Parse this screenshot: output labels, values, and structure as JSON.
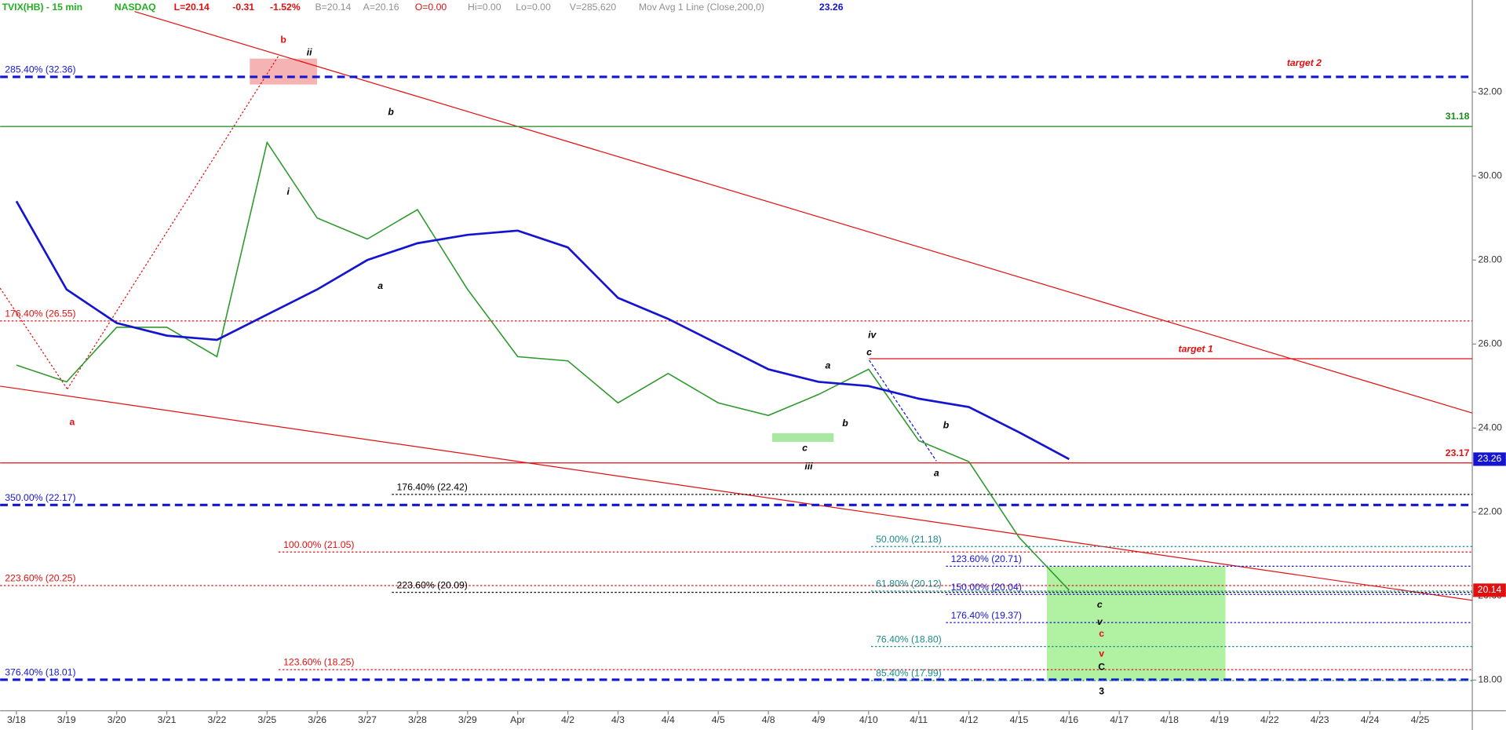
{
  "chart_data": {
    "type": "line",
    "header": [
      {
        "text": "TVIX(HB) - 15 min",
        "color": "#22b022"
      },
      {
        "text": "NASDAQ",
        "color": "#22b022"
      },
      {
        "text": "L=20.14",
        "color": "#e01010"
      },
      {
        "text": "-0.31",
        "color": "#e01010"
      },
      {
        "text": "-1.52%",
        "color": "#e01010"
      },
      {
        "text": "B=20.14",
        "color": "#909090"
      },
      {
        "text": "A=20.16",
        "color": "#909090"
      },
      {
        "text": "O=0.00",
        "color": "#e01010"
      },
      {
        "text": "Hi=0.00",
        "color": "#909090"
      },
      {
        "text": "Lo=0.00",
        "color": "#909090"
      },
      {
        "text": "V=285,620",
        "color": "#909090"
      },
      {
        "text": "Mov Avg 1 Line (Close,200,0)",
        "color": "#909090"
      },
      {
        "text": "23.26",
        "color": "#1515d0"
      }
    ],
    "categories": [
      "3/18",
      "3/19",
      "3/20",
      "3/21",
      "3/22",
      "3/25",
      "3/26",
      "3/27",
      "3/28",
      "3/29",
      "Apr",
      "4/2",
      "4/3",
      "4/4",
      "4/5",
      "4/8",
      "4/9",
      "4/10",
      "4/11",
      "4/12",
      "4/15",
      "4/16",
      "4/17",
      "4/18",
      "4/19",
      "4/22",
      "4/23",
      "4/24",
      "4/25"
    ],
    "series": [
      {
        "name": "TVIX",
        "color": "#2e9a2e",
        "values": [
          25.5,
          25.1,
          26.4,
          26.4,
          25.7,
          30.8,
          29.0,
          28.5,
          29.2,
          27.3,
          25.7,
          25.6,
          24.6,
          25.3,
          24.6,
          24.3,
          24.8,
          25.4,
          23.7,
          23.2,
          21.4,
          20.14,
          null,
          null,
          null,
          null,
          null,
          null,
          null
        ]
      },
      {
        "name": "Mov Avg",
        "color": "#1515d0",
        "values": [
          29.4,
          27.3,
          26.5,
          26.2,
          26.1,
          26.7,
          27.3,
          28.0,
          28.4,
          28.6,
          28.7,
          28.3,
          27.1,
          26.6,
          26.0,
          25.4,
          25.1,
          25.0,
          24.7,
          24.5,
          23.9,
          23.26,
          null,
          null,
          null,
          null,
          null,
          null,
          null
        ]
      }
    ],
    "ylim": [
      17.27,
      34.19
    ],
    "yticks": [
      {
        "value": 18,
        "label": "18.00"
      },
      {
        "value": 20,
        "label": "20.00"
      },
      {
        "value": 22,
        "label": "22.00"
      },
      {
        "value": 24,
        "label": "24.00"
      },
      {
        "value": 26,
        "label": "26.00"
      },
      {
        "value": 28,
        "label": "28.00"
      },
      {
        "value": 30,
        "label": "30.00"
      },
      {
        "value": 32,
        "label": "32.00"
      }
    ],
    "levels": [
      {
        "label": "285.40% (32.36)",
        "value": 32.36,
        "color": "#1515d0",
        "style": "dashed-thick"
      },
      {
        "value": 31.18,
        "color": "#1a8a1a",
        "style": "solid"
      },
      {
        "label": "176.40% (26.55)",
        "value": 26.55,
        "color": "#e01010",
        "style": "dotted"
      },
      {
        "value": 25.65,
        "color": "#e01010",
        "style": "solid"
      },
      {
        "value": 23.17,
        "color": "#e01010",
        "style": "solid"
      },
      {
        "label": "176.40% (22.42)",
        "value": 22.42,
        "color": "#000000",
        "style": "dotted"
      },
      {
        "label": "350.00% (22.17)",
        "value": 22.17,
        "color": "#1515d0",
        "style": "dashed-thick"
      },
      {
        "label": "50.00% (21.18)",
        "value": 21.18,
        "color": "#1a8a8a",
        "style": "dotted"
      },
      {
        "label": "100.00% (21.05)",
        "value": 21.05,
        "color": "#e01010",
        "style": "dotted"
      },
      {
        "label": "123.60% (20.71)",
        "value": 20.71,
        "color": "#1515d0",
        "style": "dotted"
      },
      {
        "label": "223.60% (20.25)",
        "value": 20.25,
        "color": "#e01010",
        "style": "dotted"
      },
      {
        "label": "61.80% (20.12)",
        "value": 20.12,
        "color": "#1a8a8a",
        "style": "dotted"
      },
      {
        "label": "223.60% (20.09)",
        "value": 20.09,
        "color": "#000000",
        "style": "dotted"
      },
      {
        "label": "150.00% (20.04)",
        "value": 20.04,
        "color": "#1515d0",
        "style": "dotted"
      },
      {
        "label": "176.40% (19.37)",
        "value": 19.37,
        "color": "#1515d0",
        "style": "dotted"
      },
      {
        "label": "76.40% (18.80)",
        "value": 18.8,
        "color": "#1a8a8a",
        "style": "dotted"
      },
      {
        "label": "123.60% (18.25)",
        "value": 18.25,
        "color": "#e01010",
        "style": "dotted"
      },
      {
        "label": "376.40% (18.01)",
        "value": 18.01,
        "color": "#1515d0",
        "style": "dashed-thick"
      },
      {
        "label": "85.40% (17.99)",
        "value": 17.99,
        "color": "#1a8a8a",
        "style": "dotted"
      }
    ],
    "annotations": [
      {
        "text": "b",
        "color": "#e01010"
      },
      {
        "text": "ii",
        "color": "#000000"
      },
      {
        "text": "i",
        "color": "#000000"
      },
      {
        "text": "a",
        "color": "#e01010"
      },
      {
        "text": "b",
        "color": "#000000"
      },
      {
        "text": "a",
        "color": "#000000"
      },
      {
        "text": "iv",
        "color": "#000000"
      },
      {
        "text": "c",
        "color": "#000000"
      },
      {
        "text": "a",
        "color": "#000000"
      },
      {
        "text": "b",
        "color": "#000000"
      },
      {
        "text": "c",
        "color": "#000000"
      },
      {
        "text": "iii",
        "color": "#000000"
      },
      {
        "text": "b",
        "color": "#000000"
      },
      {
        "text": "a",
        "color": "#000000"
      },
      {
        "text": "target 2",
        "color": "#e01010"
      },
      {
        "text": "target 1",
        "color": "#e01010"
      },
      {
        "text": "c",
        "color": "#000000"
      },
      {
        "text": "v",
        "color": "#000000"
      },
      {
        "text": "c",
        "color": "#e01010"
      },
      {
        "text": "v",
        "color": "#e01010"
      },
      {
        "text": "C",
        "color": "#000000"
      },
      {
        "text": "3",
        "color": "#000000"
      }
    ]
  }
}
